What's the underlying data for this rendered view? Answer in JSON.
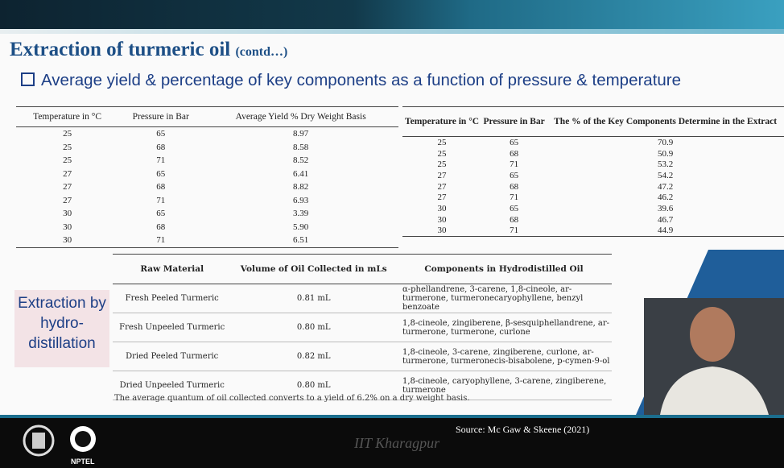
{
  "header": {
    "title": "Extraction of turmeric oil",
    "title_suffix": "(contd…)",
    "subtitle": "Average yield & percentage of key components as a function of pressure & temperature"
  },
  "table_yield": {
    "headers": [
      "Temperature in °C",
      "Pressure in Bar",
      "Average Yield % Dry Weight Basis"
    ],
    "rows": [
      [
        "25",
        "65",
        "8.97"
      ],
      [
        "25",
        "68",
        "8.58"
      ],
      [
        "25",
        "71",
        "8.52"
      ],
      [
        "27",
        "65",
        "6.41"
      ],
      [
        "27",
        "68",
        "8.82"
      ],
      [
        "27",
        "71",
        "6.93"
      ],
      [
        "30",
        "65",
        "3.39"
      ],
      [
        "30",
        "68",
        "5.90"
      ],
      [
        "30",
        "71",
        "6.51"
      ]
    ]
  },
  "table_components": {
    "headers": [
      "Temperature in °C",
      "Pressure in Bar",
      "The % of the Key Components Determine in the Extract"
    ],
    "rows": [
      [
        "25",
        "65",
        "70.9"
      ],
      [
        "25",
        "68",
        "50.9"
      ],
      [
        "25",
        "71",
        "53.2"
      ],
      [
        "27",
        "65",
        "54.2"
      ],
      [
        "27",
        "68",
        "47.2"
      ],
      [
        "27",
        "71",
        "46.2"
      ],
      [
        "30",
        "65",
        "39.6"
      ],
      [
        "30",
        "68",
        "46.7"
      ],
      [
        "30",
        "71",
        "44.9"
      ]
    ]
  },
  "side_label": "Extraction by hydro-distillation",
  "table_hydro": {
    "headers": [
      "Raw Material",
      "Volume of Oil Collected in mLs",
      "Components in Hydrodistilled Oil"
    ],
    "rows": [
      [
        "Fresh Peeled Turmeric",
        "0.81 mL",
        "α-phellandrene, 3-carene, 1,8-cineole, ar-turmerone, turmeronecaryophyllene, benzyl benzoate"
      ],
      [
        "Fresh Unpeeled Turmeric",
        "0.80 mL",
        "1,8-cineole, zingiberene, β-sesquiphellandrene, ar-turmerone, turmerone, curlone"
      ],
      [
        "Dried Peeled Turmeric",
        "0.82 mL",
        "1,8-cineole, 3-carene, zingiberene, curlone, ar-turmerone, turmeronecis-bisabolene, p-cymen-9-ol"
      ],
      [
        "Dried Unpeeled Turmeric",
        "0.80 mL",
        "1,8-cineole, caryophyllene, 3-carene, zingiberene, turmerone"
      ]
    ],
    "note": "The average quantum of oil collected converts to a yield of 6.2% on a dry weight basis."
  },
  "footer": {
    "source": "Source: Mc Gaw & Skeene (2021)",
    "institute": "IIT Kharagpur",
    "logo_text": "NPTEL"
  }
}
